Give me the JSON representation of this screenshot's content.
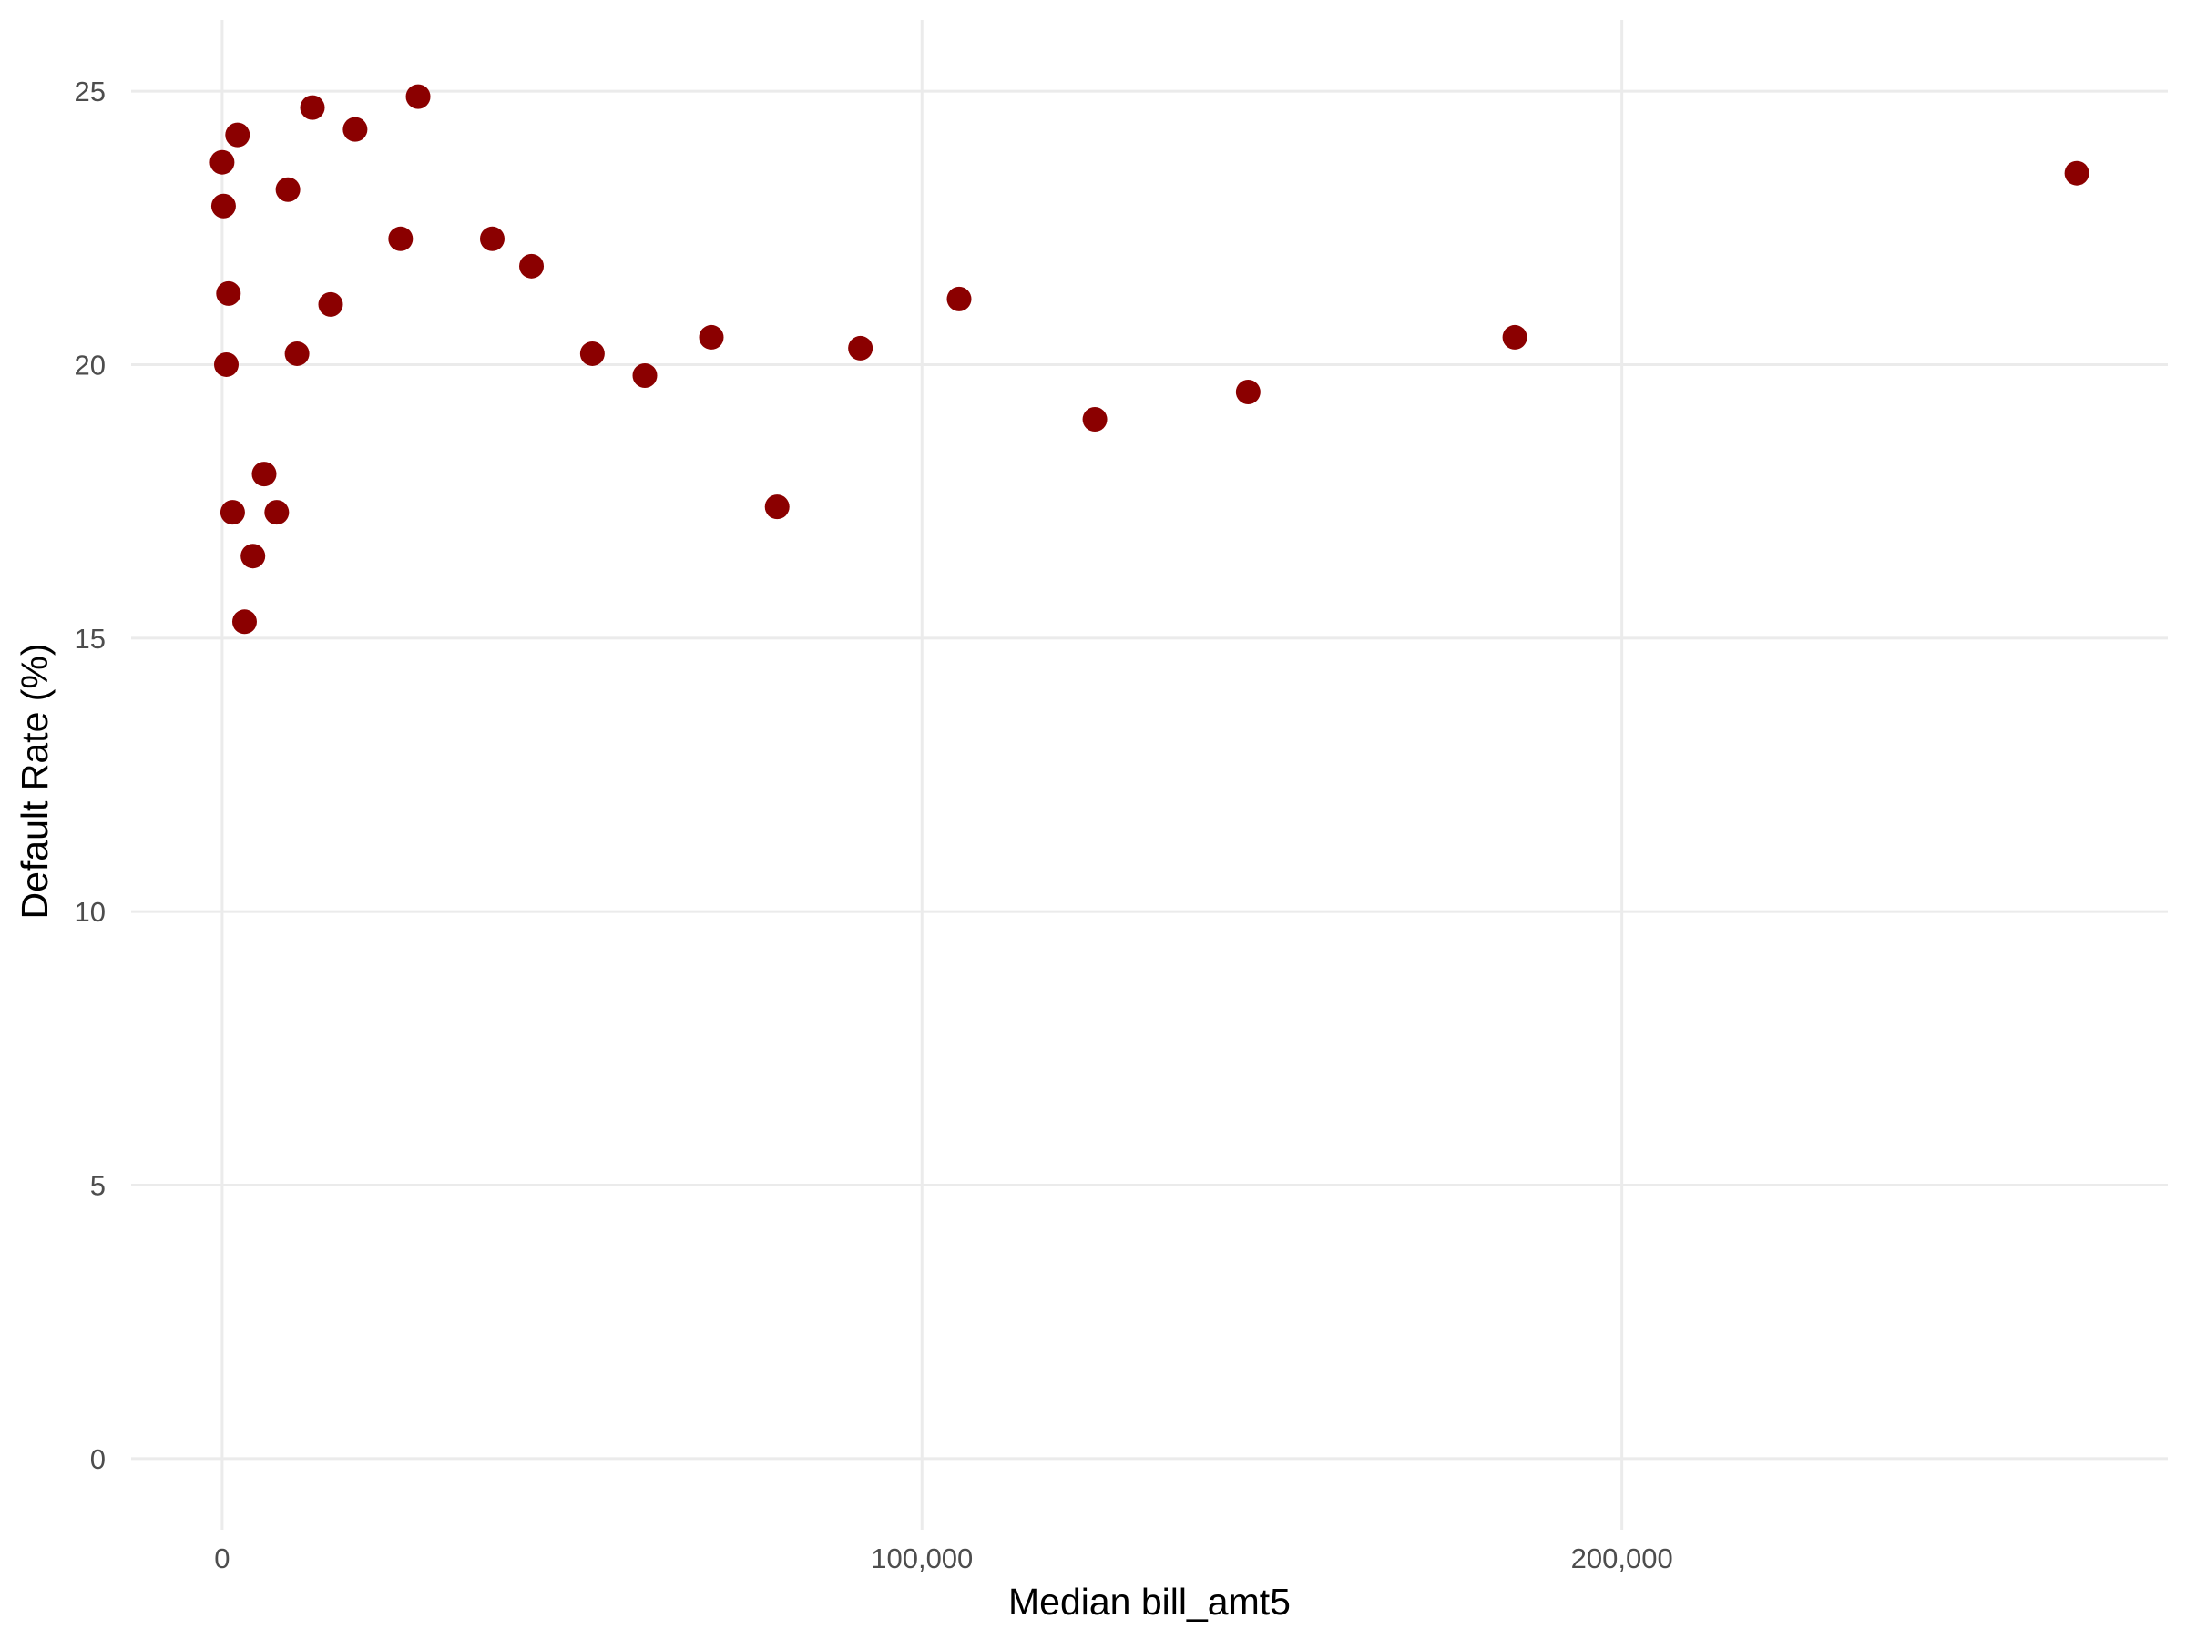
{
  "chart_data": {
    "type": "scatter",
    "title": "",
    "xlabel": "Median bill_amt5",
    "ylabel": "Default Rate (%)",
    "xlim": [
      -13000,
      278000
    ],
    "ylim": [
      -1.3,
      26.3
    ],
    "x_ticks": [
      0,
      100000,
      200000
    ],
    "x_tick_labels": [
      "0",
      "100,000",
      "200,000"
    ],
    "y_ticks": [
      0,
      5,
      10,
      15,
      20,
      25
    ],
    "y_tick_labels": [
      "0",
      "5",
      "10",
      "15",
      "20",
      "25"
    ],
    "grid": true,
    "legend": "none",
    "point_color": "#8b0000",
    "series": [
      {
        "points": [
          {
            "x": 0,
            "y": 23.7
          },
          {
            "x": 200,
            "y": 22.9
          },
          {
            "x": 900,
            "y": 21.3
          },
          {
            "x": 600,
            "y": 20.0
          },
          {
            "x": 1500,
            "y": 17.3
          },
          {
            "x": 2200,
            "y": 24.2
          },
          {
            "x": 3200,
            "y": 15.3
          },
          {
            "x": 4400,
            "y": 16.5
          },
          {
            "x": 6000,
            "y": 18.0
          },
          {
            "x": 7800,
            "y": 17.3
          },
          {
            "x": 9400,
            "y": 23.2
          },
          {
            "x": 10700,
            "y": 20.2
          },
          {
            "x": 12900,
            "y": 24.7
          },
          {
            "x": 15500,
            "y": 21.1
          },
          {
            "x": 19000,
            "y": 24.3
          },
          {
            "x": 25500,
            "y": 22.3
          },
          {
            "x": 28000,
            "y": 24.9
          },
          {
            "x": 38600,
            "y": 22.3
          },
          {
            "x": 44200,
            "y": 21.8
          },
          {
            "x": 52900,
            "y": 20.2
          },
          {
            "x": 60400,
            "y": 19.8
          },
          {
            "x": 69900,
            "y": 20.5
          },
          {
            "x": 79300,
            "y": 17.4
          },
          {
            "x": 91200,
            "y": 20.3
          },
          {
            "x": 105300,
            "y": 21.2
          },
          {
            "x": 124700,
            "y": 19.0
          },
          {
            "x": 146600,
            "y": 19.5
          },
          {
            "x": 184700,
            "y": 20.5
          },
          {
            "x": 265000,
            "y": 23.5
          }
        ]
      }
    ]
  }
}
